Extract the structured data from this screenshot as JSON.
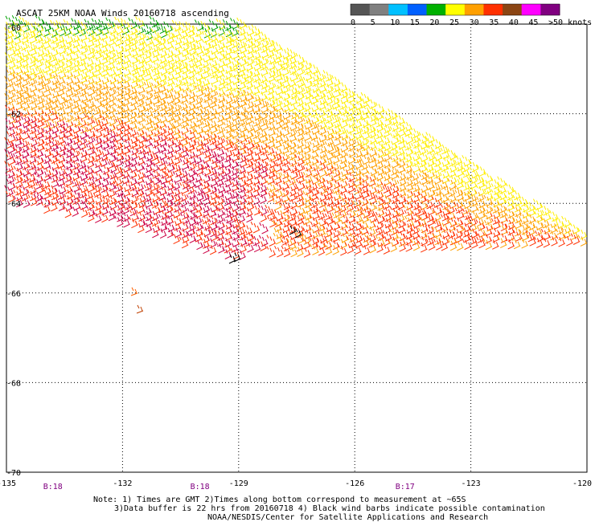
{
  "title": "ASCAT 25KM NOAA Winds 20160718 ascending",
  "legend": {
    "labels": [
      "0",
      "5",
      "10",
      "15",
      "20",
      "25",
      "30",
      "35",
      "40",
      "45",
      ">50 knots"
    ],
    "colors": [
      "#555555",
      "#808080",
      "#00c0ff",
      "#0060ff",
      "#00b000",
      "#ffff00",
      "#ffa000",
      "#ff3000",
      "#8b4513",
      "#ff00ff",
      "#800080"
    ]
  },
  "map": {
    "lon_range": [
      -135,
      -120
    ],
    "lat_range": [
      -70,
      -60
    ],
    "lon_ticks": [
      "-135",
      "-132",
      "-129",
      "-126",
      "-123",
      "-120"
    ],
    "lon_tick_values": [
      -135,
      -132,
      -129,
      -126,
      -123,
      -120
    ],
    "lat_ticks": [
      "-60",
      "-62",
      "-64",
      "-66",
      "-68",
      "-70"
    ],
    "lat_tick_values": [
      -60,
      -62,
      -64,
      -66,
      -68,
      -70
    ],
    "grid": true
  },
  "times": [
    {
      "label": "B:18",
      "lon": -133.8
    },
    {
      "label": "B:18",
      "lon": -130.0
    },
    {
      "label": "B:17",
      "lon": -124.7
    }
  ],
  "notes": [
    "Note: 1) Times are GMT 2)Times along bottom correspond to measurement at ~65S",
    "3)Data buffer is 22 hrs from 20160718 4) Black wind barbs indicate possible contamination",
    "NOAA/NESDIS/Center for Satellite Applications and Research"
  ],
  "swath": {
    "description_colors": {
      "calm": "#00a000",
      "light": "#ffee00",
      "moderate": "#ffa000",
      "strong": "#ff3000",
      "very_strong": "#cc0044"
    }
  }
}
